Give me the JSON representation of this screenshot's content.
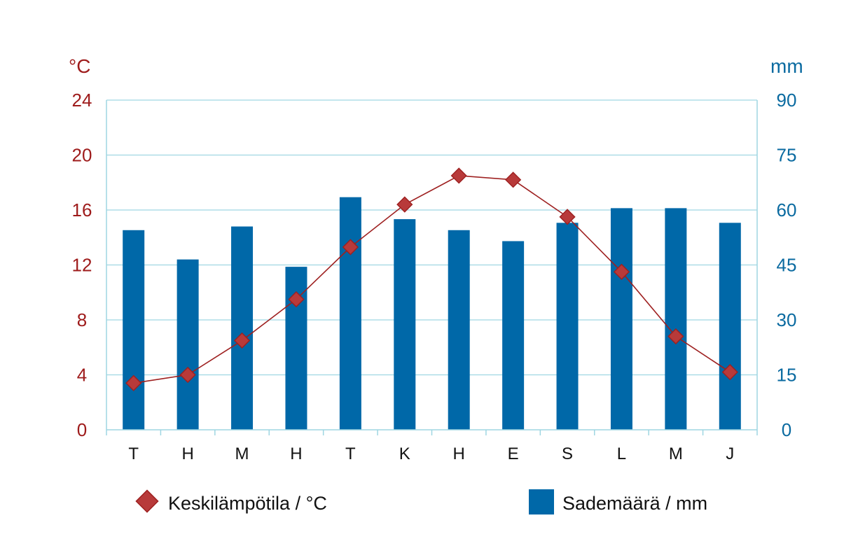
{
  "chart_data": {
    "type": "bar+line",
    "categories": [
      "T",
      "H",
      "M",
      "H",
      "T",
      "K",
      "H",
      "E",
      "S",
      "L",
      "M",
      "J"
    ],
    "series": [
      {
        "name": "Keskilämpötila / °C",
        "type": "line",
        "axis": "left",
        "values": [
          3.4,
          4.0,
          6.5,
          9.5,
          13.3,
          16.4,
          18.5,
          18.2,
          15.5,
          11.5,
          6.8,
          4.2
        ]
      },
      {
        "name": "Sademäärä / mm",
        "type": "bar",
        "axis": "right",
        "values": [
          54.5,
          46.5,
          55.5,
          44.5,
          63.5,
          57.5,
          54.5,
          51.5,
          56.5,
          60.5,
          60.5,
          56.5
        ]
      }
    ],
    "y_left": {
      "unit": "°C",
      "ticks": [
        "0",
        "4",
        "8",
        "12",
        "16",
        "20",
        "24"
      ],
      "range": [
        0,
        24
      ]
    },
    "y_right": {
      "unit": "mm",
      "ticks": [
        "0",
        "15",
        "30",
        "45",
        "60",
        "75",
        "90"
      ],
      "range": [
        0,
        90
      ]
    },
    "grid": true,
    "legend": "bottom"
  },
  "colors": {
    "temperature": "#b83a3a",
    "temperature_line": "#9e2020",
    "temperature_axis": "#9e1b1b",
    "precipitation": "#0068a8",
    "precip_axis": "#0a6aa0",
    "grid": "#9fd6e2"
  },
  "legend": {
    "temperature_label": "Keskilämpötila / °C",
    "precipitation_label": "Sademäärä / mm"
  }
}
